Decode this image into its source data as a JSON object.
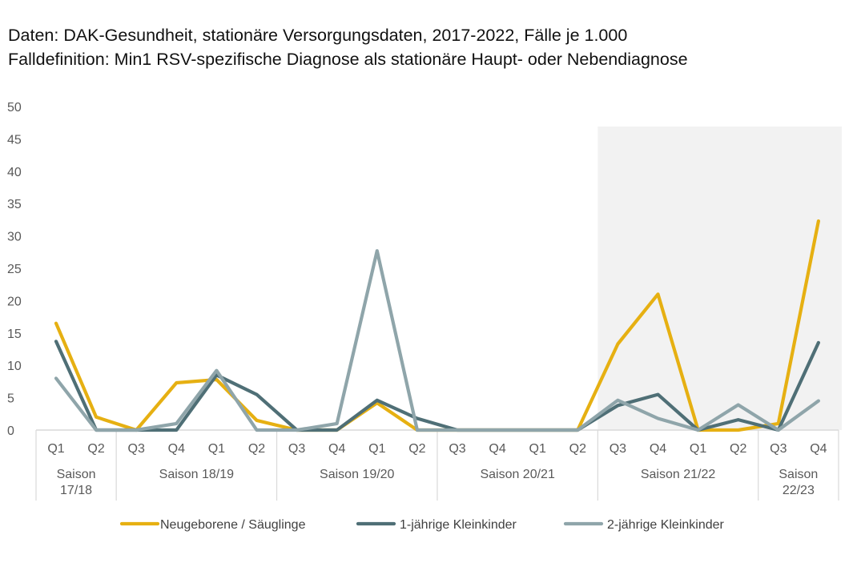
{
  "chart_data": {
    "type": "line",
    "title": "Daten: DAK-Gesundheit, stationäre Versorgungsdaten, 2017-2022, Fälle je 1.000",
    "subtitle": "Falldefinition: Min1 RSV-spezifische Diagnose als stationäre Haupt- oder Nebendiagnose",
    "xlabel": "",
    "ylabel": "",
    "ylim": [
      0,
      50
    ],
    "yticks": [
      "0",
      "5",
      "10",
      "15",
      "20",
      "25",
      "30",
      "35",
      "40",
      "45",
      "50"
    ],
    "grid": false,
    "x": [
      "Q1",
      "Q2",
      "Q3",
      "Q4",
      "Q1",
      "Q2",
      "Q3",
      "Q4",
      "Q1",
      "Q2",
      "Q3",
      "Q4",
      "Q1",
      "Q2",
      "Q3",
      "Q4",
      "Q1",
      "Q2",
      "Q3",
      "Q4"
    ],
    "groups": [
      {
        "label": "Saison 17/18",
        "lines": [
          "Saison",
          "17/18"
        ],
        "span": 2
      },
      {
        "label": "Saison 18/19",
        "lines": [
          "Saison 18/19"
        ],
        "span": 4
      },
      {
        "label": "Saison 19/20",
        "lines": [
          "Saison 19/20"
        ],
        "span": 4
      },
      {
        "label": "Saison 20/21",
        "lines": [
          "Saison 20/21"
        ],
        "span": 4
      },
      {
        "label": "Saison 21/22",
        "lines": [
          "Saison 21/22"
        ],
        "span": 4
      },
      {
        "label": "Saison 22/23",
        "lines": [
          "Saison",
          "22/23"
        ],
        "span": 2
      }
    ],
    "highlight": {
      "from_index": 14,
      "to_index": 19,
      "color": "#f2f2f2"
    },
    "series": [
      {
        "name": "Neugeborene / Säuglinge",
        "color": "#e6b012",
        "values": [
          16.5,
          2.0,
          0,
          7.3,
          7.8,
          1.5,
          0,
          0,
          4.2,
          0,
          0,
          0,
          0,
          0,
          13.3,
          21.0,
          0,
          0,
          1.0,
          32.3
        ]
      },
      {
        "name": "1-jährige Kleinkinder",
        "color": "#4f6f76",
        "values": [
          13.7,
          0,
          0,
          0,
          8.5,
          5.5,
          0,
          0,
          4.6,
          1.8,
          0,
          0,
          0,
          0,
          3.8,
          5.5,
          0,
          1.6,
          0,
          13.5
        ]
      },
      {
        "name": "2-jährige Kleinkinder",
        "color": "#8fa5aa",
        "values": [
          8.0,
          0,
          0,
          1.0,
          9.2,
          0,
          0,
          1.0,
          27.7,
          0,
          0,
          0,
          0,
          0,
          4.6,
          1.8,
          0,
          3.9,
          0,
          4.5
        ]
      }
    ],
    "legend": "bottom"
  }
}
